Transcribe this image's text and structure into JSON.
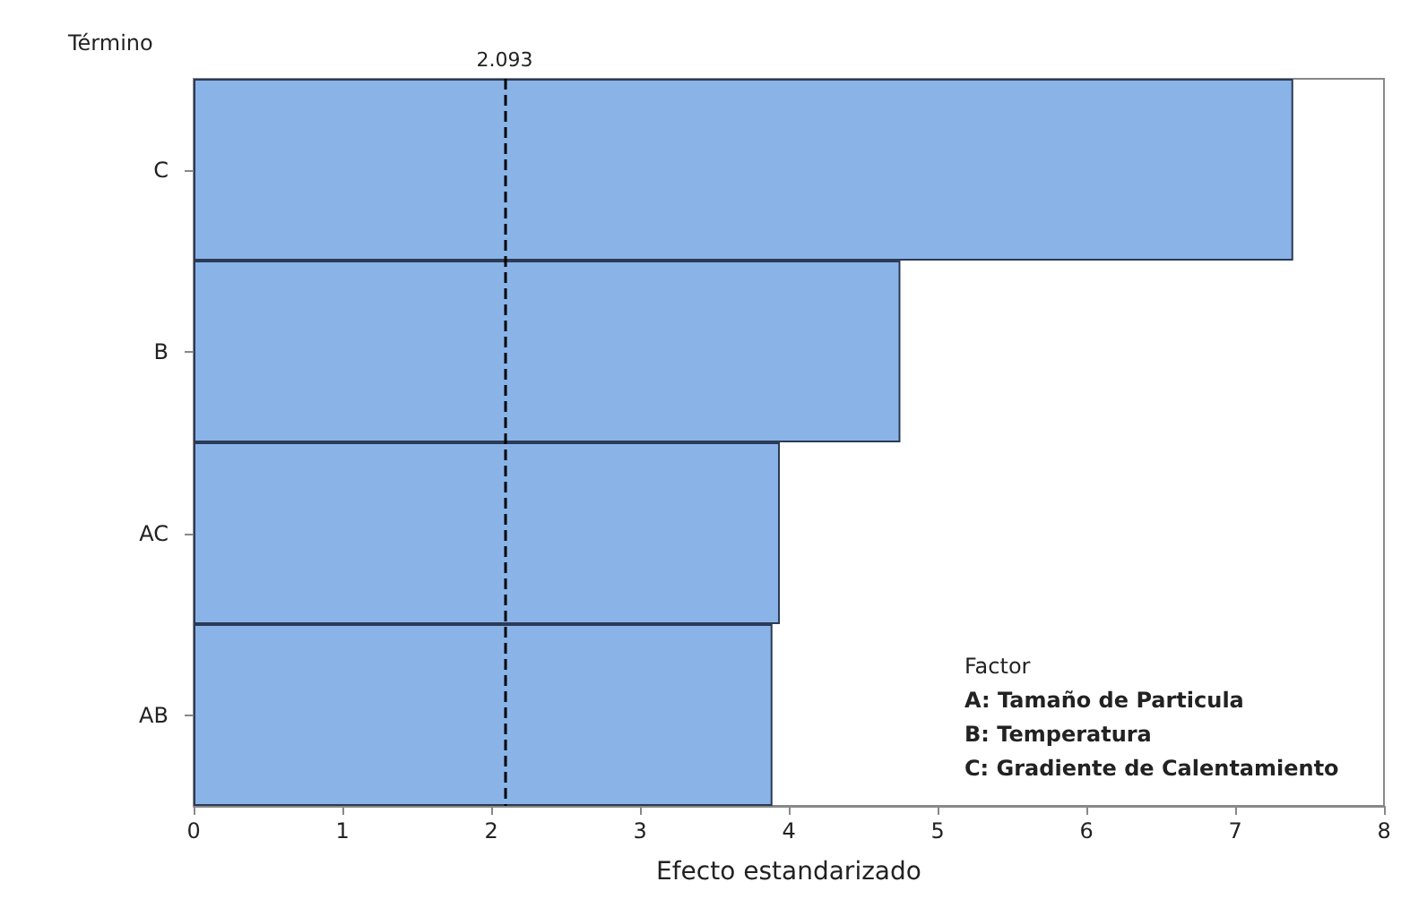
{
  "chart_data": {
    "type": "bar",
    "orientation": "horizontal",
    "xlabel": "Efecto estandarizado",
    "ylabel": "Término",
    "categories": [
      "C",
      "B",
      "AC",
      "AB"
    ],
    "values": [
      7.39,
      4.75,
      3.94,
      3.89
    ],
    "color": "#8ab4e8",
    "xlim": [
      0,
      8
    ],
    "xticks": [
      0,
      1,
      2,
      3,
      4,
      5,
      6,
      7,
      8
    ],
    "ref_lines": [
      {
        "axis": "x",
        "value": 2.093,
        "label": "2.093",
        "line_style": "dashed",
        "color": "#000000"
      }
    ],
    "annotations": [
      "Factor",
      "A: Tamaño de Particula",
      "B: Temperatura",
      "C: Gradiente de Calentamiento"
    ],
    "grid": false
  }
}
